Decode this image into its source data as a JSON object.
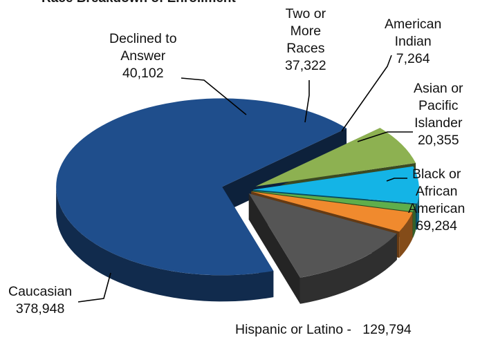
{
  "chart_data": {
    "type": "pie",
    "title": "Race Breakdown of Enrollment",
    "slices": [
      {
        "label_lines": [
          "Caucasian",
          "378,948"
        ],
        "value": 378948,
        "color": "#1f4e8c"
      },
      {
        "label_lines": [
          "Declined to",
          "Answer",
          "40,102"
        ],
        "value": 40102,
        "color": "#8db151"
      },
      {
        "label_lines": [
          "Two or",
          "More",
          "Races",
          "37,322"
        ],
        "value": 37322,
        "color": "#14b4e6"
      },
      {
        "label_lines": [
          "American",
          "Indian",
          "7,264"
        ],
        "value": 7264,
        "color": "#5fae4b"
      },
      {
        "label_lines": [
          "Asian or",
          "Pacific",
          "Islander",
          "20,355"
        ],
        "value": 20355,
        "color": "#f08a2e"
      },
      {
        "label_lines": [
          "Black or",
          "African",
          "American",
          "69,284"
        ],
        "value": 69284,
        "color": "#555555"
      }
    ],
    "footnote": {
      "label": "Hispanic or Latino -",
      "value": "129,794"
    }
  }
}
